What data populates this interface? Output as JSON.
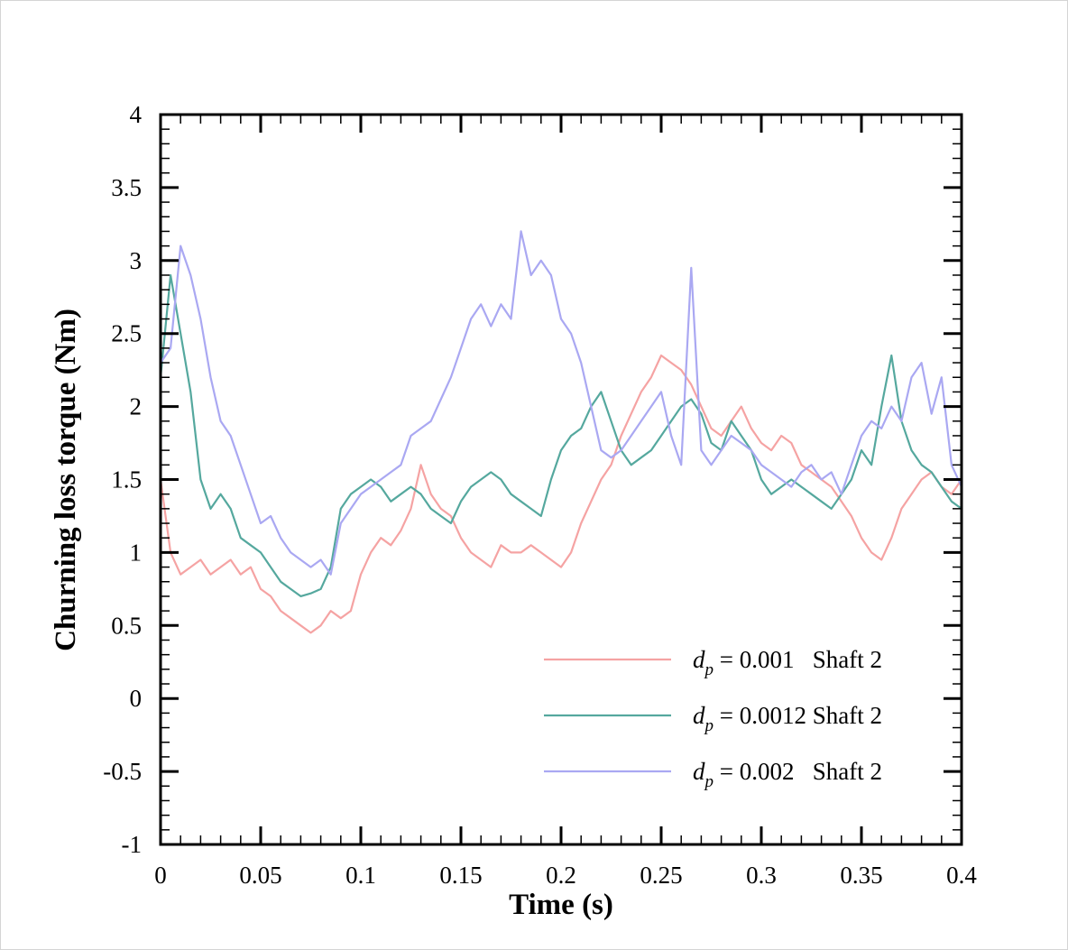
{
  "chart_data": {
    "type": "line",
    "title": "",
    "xlabel": "Time (s)",
    "ylabel": "Churning loss torque (Nm)",
    "xlim": [
      0,
      0.4
    ],
    "ylim": [
      -1,
      4
    ],
    "xticks": [
      0,
      0.05,
      0.1,
      0.15,
      0.2,
      0.25,
      0.3,
      0.35,
      0.4
    ],
    "xtick_labels": [
      "0",
      "0.05",
      "0.1",
      "0.15",
      "0.2",
      "0.25",
      "0.3",
      "0.35",
      "0.4"
    ],
    "yticks": [
      -1,
      -0.5,
      0,
      0.5,
      1,
      1.5,
      2,
      2.5,
      3,
      3.5,
      4
    ],
    "ytick_labels": [
      "-1",
      "-0.5",
      "0",
      "0.5",
      "1",
      "1.5",
      "2",
      "2.5",
      "3",
      "3.5",
      "4"
    ],
    "legend_position": "lower-right",
    "series": [
      {
        "name": "dp = 0.001 Shaft 2",
        "legend_symbol": "d",
        "legend_subscript": "p",
        "legend_text": " = 0.001   Shaft 2",
        "color": "#f5a3a3",
        "x": [
          0,
          0.005,
          0.01,
          0.015,
          0.02,
          0.025,
          0.03,
          0.035,
          0.04,
          0.045,
          0.05,
          0.055,
          0.06,
          0.065,
          0.07,
          0.075,
          0.08,
          0.085,
          0.09,
          0.095,
          0.1,
          0.105,
          0.11,
          0.115,
          0.12,
          0.125,
          0.13,
          0.135,
          0.14,
          0.145,
          0.15,
          0.155,
          0.16,
          0.165,
          0.17,
          0.175,
          0.18,
          0.185,
          0.19,
          0.195,
          0.2,
          0.205,
          0.21,
          0.215,
          0.22,
          0.225,
          0.23,
          0.235,
          0.24,
          0.245,
          0.25,
          0.255,
          0.26,
          0.265,
          0.27,
          0.275,
          0.28,
          0.285,
          0.29,
          0.295,
          0.3,
          0.305,
          0.31,
          0.315,
          0.32,
          0.325,
          0.33,
          0.335,
          0.34,
          0.345,
          0.35,
          0.355,
          0.36,
          0.365,
          0.37,
          0.375,
          0.38,
          0.385,
          0.39,
          0.395,
          0.4
        ],
        "y": [
          1.5,
          1.0,
          0.85,
          0.9,
          0.95,
          0.85,
          0.9,
          0.95,
          0.85,
          0.9,
          0.75,
          0.7,
          0.6,
          0.55,
          0.5,
          0.45,
          0.5,
          0.6,
          0.55,
          0.6,
          0.85,
          1.0,
          1.1,
          1.05,
          1.15,
          1.3,
          1.6,
          1.4,
          1.3,
          1.25,
          1.1,
          1.0,
          0.95,
          0.9,
          1.05,
          1.0,
          1.0,
          1.05,
          1.0,
          0.95,
          0.9,
          1.0,
          1.2,
          1.35,
          1.5,
          1.6,
          1.8,
          1.95,
          2.1,
          2.2,
          2.35,
          2.3,
          2.25,
          2.15,
          2.0,
          1.85,
          1.8,
          1.9,
          2.0,
          1.85,
          1.75,
          1.7,
          1.8,
          1.75,
          1.6,
          1.55,
          1.5,
          1.45,
          1.35,
          1.25,
          1.1,
          1.0,
          0.95,
          1.1,
          1.3,
          1.4,
          1.5,
          1.55,
          1.45,
          1.4,
          1.5
        ]
      },
      {
        "name": "dp = 0.0012 Shaft 2",
        "legend_symbol": "d",
        "legend_subscript": "p",
        "legend_text": " = 0.0012 Shaft 2",
        "color": "#55a89e",
        "x": [
          0,
          0.005,
          0.01,
          0.015,
          0.02,
          0.025,
          0.03,
          0.035,
          0.04,
          0.045,
          0.05,
          0.055,
          0.06,
          0.065,
          0.07,
          0.075,
          0.08,
          0.085,
          0.09,
          0.095,
          0.1,
          0.105,
          0.11,
          0.115,
          0.12,
          0.125,
          0.13,
          0.135,
          0.14,
          0.145,
          0.15,
          0.155,
          0.16,
          0.165,
          0.17,
          0.175,
          0.18,
          0.185,
          0.19,
          0.195,
          0.2,
          0.205,
          0.21,
          0.215,
          0.22,
          0.225,
          0.23,
          0.235,
          0.24,
          0.245,
          0.25,
          0.255,
          0.26,
          0.265,
          0.27,
          0.275,
          0.28,
          0.285,
          0.29,
          0.295,
          0.3,
          0.305,
          0.31,
          0.315,
          0.32,
          0.325,
          0.33,
          0.335,
          0.34,
          0.345,
          0.35,
          0.355,
          0.36,
          0.365,
          0.37,
          0.375,
          0.38,
          0.385,
          0.39,
          0.395,
          0.4
        ],
        "y": [
          2.2,
          2.9,
          2.5,
          2.1,
          1.5,
          1.3,
          1.4,
          1.3,
          1.1,
          1.05,
          1.0,
          0.9,
          0.8,
          0.75,
          0.7,
          0.72,
          0.75,
          0.9,
          1.3,
          1.4,
          1.45,
          1.5,
          1.45,
          1.35,
          1.4,
          1.45,
          1.4,
          1.3,
          1.25,
          1.2,
          1.35,
          1.45,
          1.5,
          1.55,
          1.5,
          1.4,
          1.35,
          1.3,
          1.25,
          1.5,
          1.7,
          1.8,
          1.85,
          2.0,
          2.1,
          1.9,
          1.7,
          1.6,
          1.65,
          1.7,
          1.8,
          1.9,
          2.0,
          2.05,
          1.95,
          1.75,
          1.7,
          1.9,
          1.8,
          1.7,
          1.5,
          1.4,
          1.45,
          1.5,
          1.45,
          1.4,
          1.35,
          1.3,
          1.4,
          1.5,
          1.7,
          1.6,
          2.0,
          2.35,
          1.9,
          1.7,
          1.6,
          1.55,
          1.45,
          1.35,
          1.3
        ]
      },
      {
        "name": "dp = 0.002 Shaft 2",
        "legend_symbol": "d",
        "legend_subscript": "p",
        "legend_text": " = 0.002   Shaft 2",
        "color": "#aaa8f2",
        "x": [
          0,
          0.005,
          0.01,
          0.015,
          0.02,
          0.025,
          0.03,
          0.035,
          0.04,
          0.045,
          0.05,
          0.055,
          0.06,
          0.065,
          0.07,
          0.075,
          0.08,
          0.085,
          0.09,
          0.095,
          0.1,
          0.105,
          0.11,
          0.115,
          0.12,
          0.125,
          0.13,
          0.135,
          0.14,
          0.145,
          0.15,
          0.155,
          0.16,
          0.165,
          0.17,
          0.175,
          0.18,
          0.185,
          0.19,
          0.195,
          0.2,
          0.205,
          0.21,
          0.215,
          0.22,
          0.225,
          0.23,
          0.235,
          0.24,
          0.245,
          0.25,
          0.255,
          0.26,
          0.265,
          0.27,
          0.275,
          0.28,
          0.285,
          0.29,
          0.295,
          0.3,
          0.305,
          0.31,
          0.315,
          0.32,
          0.325,
          0.33,
          0.335,
          0.34,
          0.345,
          0.35,
          0.355,
          0.36,
          0.365,
          0.37,
          0.375,
          0.38,
          0.385,
          0.39,
          0.395,
          0.4
        ],
        "y": [
          2.3,
          2.4,
          3.1,
          2.9,
          2.6,
          2.2,
          1.9,
          1.8,
          1.6,
          1.4,
          1.2,
          1.25,
          1.1,
          1.0,
          0.95,
          0.9,
          0.95,
          0.85,
          1.2,
          1.3,
          1.4,
          1.45,
          1.5,
          1.55,
          1.6,
          1.8,
          1.85,
          1.9,
          2.05,
          2.2,
          2.4,
          2.6,
          2.7,
          2.55,
          2.7,
          2.6,
          3.2,
          2.9,
          3.0,
          2.9,
          2.6,
          2.5,
          2.3,
          2.0,
          1.7,
          1.65,
          1.7,
          1.8,
          1.9,
          2.0,
          2.1,
          1.8,
          1.6,
          2.95,
          1.7,
          1.6,
          1.7,
          1.8,
          1.75,
          1.7,
          1.6,
          1.55,
          1.5,
          1.45,
          1.55,
          1.6,
          1.5,
          1.55,
          1.4,
          1.6,
          1.8,
          1.9,
          1.85,
          2.0,
          1.9,
          2.2,
          2.3,
          1.95,
          2.2,
          1.6,
          1.45
        ]
      }
    ]
  }
}
